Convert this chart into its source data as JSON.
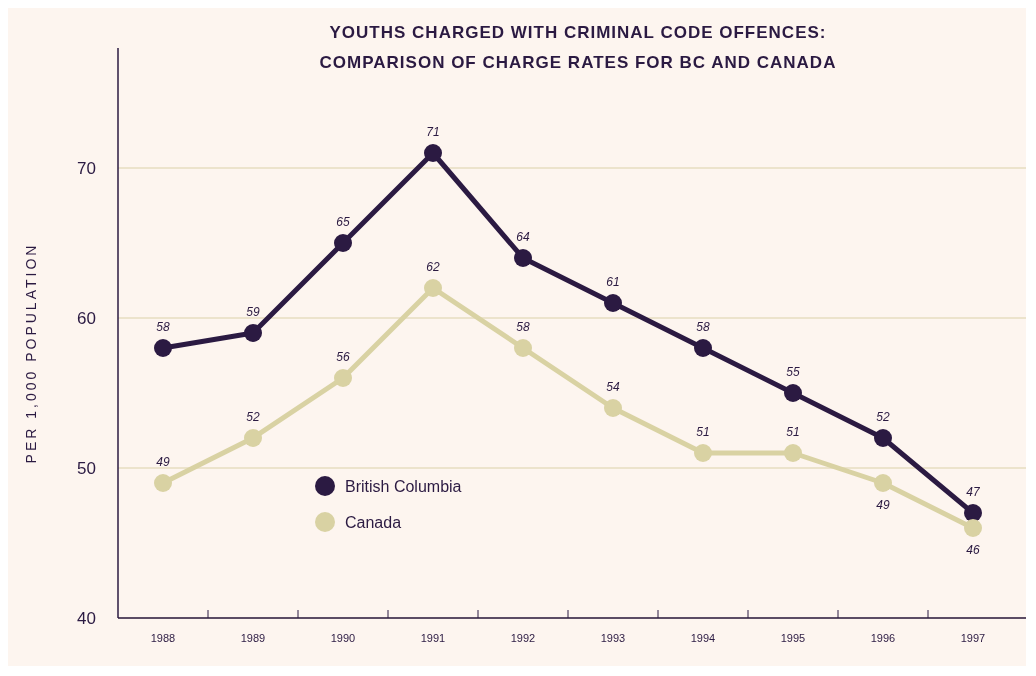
{
  "chart_data": {
    "type": "line",
    "title": "YOUTHS CHARGED WITH CRIMINAL CODE OFFENCES:\nCOMPARISON OF CHARGE RATES FOR BC AND CANADA",
    "ylabel": "PER 1,000 POPULATION",
    "categories": [
      "1988",
      "1989",
      "1990",
      "1991",
      "1992",
      "1993",
      "1994",
      "1995",
      "1996",
      "1997"
    ],
    "series": [
      {
        "name": "British Columbia",
        "color": "#2b1a42",
        "values": [
          58,
          59,
          65,
          71,
          64,
          61,
          58,
          55,
          52,
          47
        ]
      },
      {
        "name": "Canada",
        "color": "#d9d2a3",
        "values": [
          49,
          52,
          56,
          62,
          58,
          54,
          51,
          51,
          49,
          46
        ]
      }
    ],
    "ylim": [
      40,
      78
    ],
    "yticks": [
      40,
      50,
      60,
      70
    ],
    "grid": "y",
    "legend": "bottom left",
    "marker": "circle",
    "line_style": "solid",
    "data_labels": true
  }
}
